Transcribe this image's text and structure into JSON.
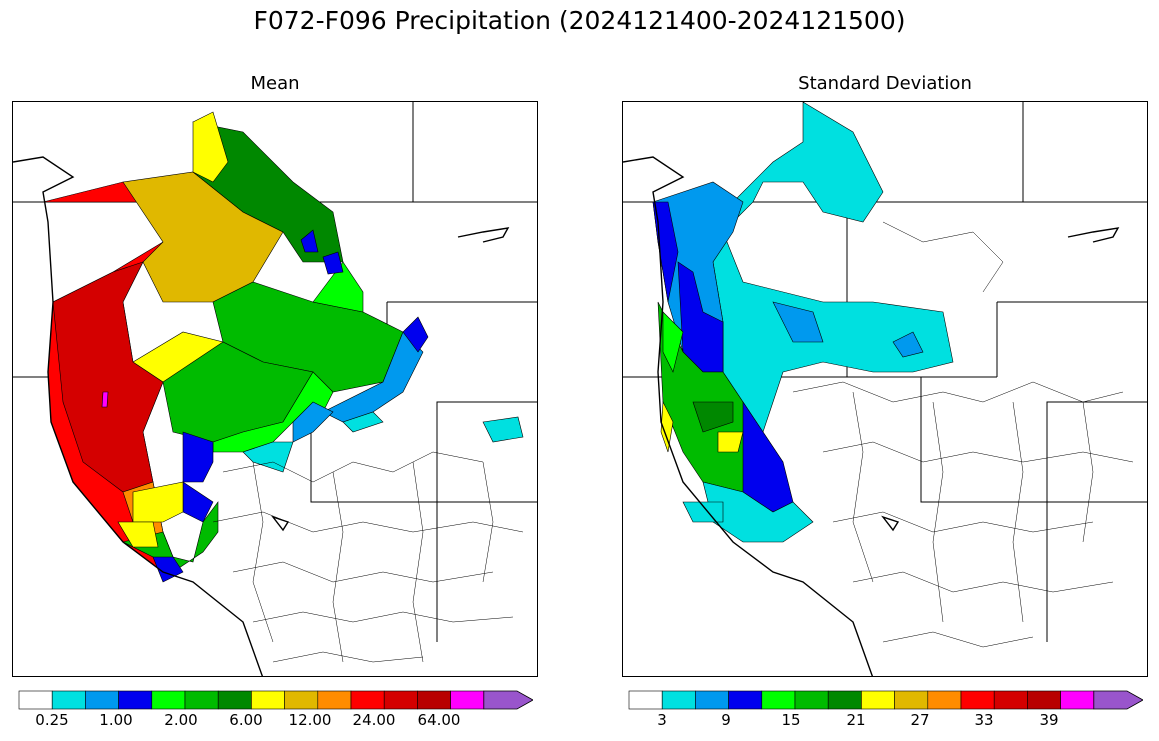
{
  "figure": {
    "title": "F072-F096 Precipitation (2024121400-2024121500)"
  },
  "panels": [
    {
      "title": "Mean",
      "colorbar": {
        "colors": [
          "#ffffff",
          "#00e0e0",
          "#0099ee",
          "#0000ee",
          "#00ff00",
          "#00bb00",
          "#008800",
          "#ffff00",
          "#e0b800",
          "#ff8c00",
          "#ff0000",
          "#d40000",
          "#b80000",
          "#ff00ff",
          "#9955cc"
        ],
        "tick_labels": [
          "0.25",
          "1.00",
          "2.00",
          "6.00",
          "12.00",
          "24.00",
          "64.00"
        ]
      }
    },
    {
      "title": "Standard Deviation",
      "colorbar": {
        "colors": [
          "#ffffff",
          "#00e0e0",
          "#0099ee",
          "#0000ee",
          "#00ff00",
          "#00bb00",
          "#008800",
          "#ffff00",
          "#e0b800",
          "#ff8c00",
          "#ff0000",
          "#d40000",
          "#b80000",
          "#ff00ff",
          "#9955cc"
        ],
        "tick_labels": [
          "3",
          "9",
          "15",
          "21",
          "27",
          "33",
          "39"
        ]
      }
    }
  ]
}
